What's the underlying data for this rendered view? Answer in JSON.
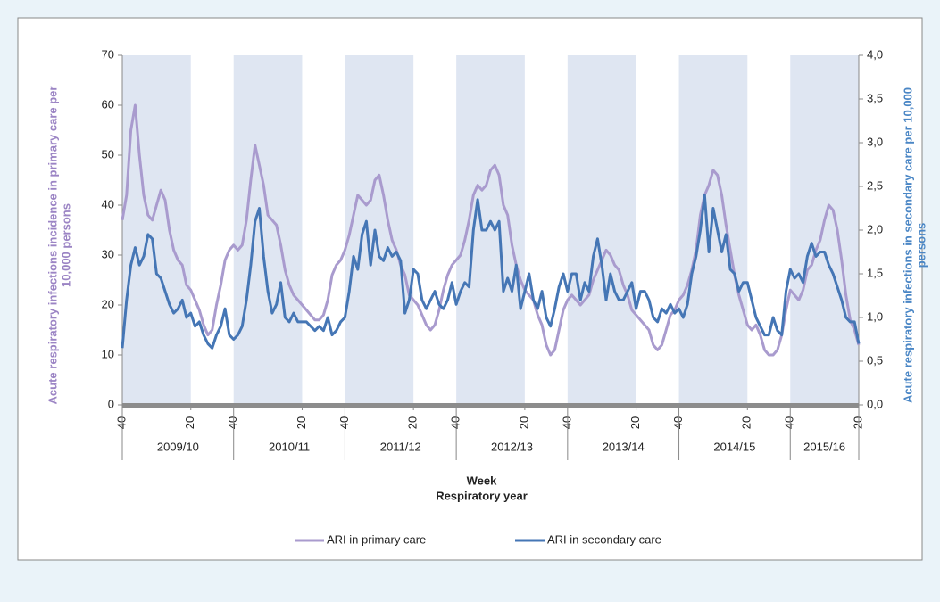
{
  "chart_data": {
    "type": "line",
    "xlabel": [
      "Week",
      "Respiratory year"
    ],
    "ylabel": [
      "Acute respiratory infections incidence in primary care per",
      "10,000 persons"
    ],
    "y2label": [
      "Acute respiratory infections in secondary care per 10,000",
      "persons"
    ],
    "seasons": [
      "2009/10",
      "2010/11",
      "2011/12",
      "2012/13",
      "2013/14",
      "2014/15",
      "2015/16"
    ],
    "x": [
      0,
      2,
      4,
      6,
      8,
      10,
      12,
      14,
      16,
      18,
      20,
      22,
      24,
      26,
      28,
      30,
      32,
      34,
      36,
      38,
      40,
      42,
      44,
      46,
      48,
      50,
      52,
      54,
      56,
      58,
      60,
      62,
      64,
      66,
      68,
      70,
      72,
      74,
      76,
      78,
      80,
      82,
      84,
      86,
      88,
      90,
      92,
      94,
      96,
      98,
      100,
      102,
      104,
      106,
      108,
      110,
      112,
      114,
      116,
      118,
      120,
      122,
      124,
      126,
      128,
      130,
      132,
      134,
      136,
      138,
      140,
      142,
      144,
      146,
      148,
      150,
      152,
      154,
      156,
      158,
      160,
      162,
      164,
      166,
      168,
      170,
      172,
      174,
      176,
      178,
      180,
      182,
      184,
      186,
      188,
      190,
      192,
      194,
      196,
      198,
      200,
      202,
      204,
      206,
      208,
      210,
      212,
      214,
      216,
      218,
      220,
      222,
      224,
      226,
      228,
      230,
      232,
      234,
      236,
      238,
      240,
      242,
      244,
      246,
      248,
      250,
      252,
      254,
      256,
      258,
      260,
      262,
      264,
      266,
      268,
      270,
      272,
      274,
      276,
      278,
      280,
      282,
      284,
      286,
      288,
      290,
      292,
      294,
      296,
      298,
      300,
      302,
      304,
      306,
      308,
      310,
      312,
      314,
      316,
      318,
      320,
      322,
      324,
      326,
      328,
      330,
      332,
      334,
      336,
      338,
      340,
      342,
      344
    ],
    "xlim": [
      0,
      344
    ],
    "xticks": [
      {
        "value": 0,
        "label": "40"
      },
      {
        "value": 32,
        "label": "20"
      },
      {
        "value": 52,
        "label": "40"
      },
      {
        "value": 84,
        "label": "20"
      },
      {
        "value": 104,
        "label": "40"
      },
      {
        "value": 136,
        "label": "20"
      },
      {
        "value": 156,
        "label": "40"
      },
      {
        "value": 188,
        "label": "20"
      },
      {
        "value": 208,
        "label": "40"
      },
      {
        "value": 240,
        "label": "20"
      },
      {
        "value": 260,
        "label": "40"
      },
      {
        "value": 292,
        "label": "20"
      },
      {
        "value": 312,
        "label": "40"
      },
      {
        "value": 344,
        "label": "20"
      }
    ],
    "ylim": [
      0,
      70
    ],
    "yticks": [
      0,
      10,
      20,
      30,
      40,
      50,
      60,
      70
    ],
    "y2lim": [
      0,
      4
    ],
    "y2ticks": [
      {
        "value": 0,
        "label": "0,0"
      },
      {
        "value": 0.5,
        "label": "0,5"
      },
      {
        "value": 1,
        "label": "1,0"
      },
      {
        "value": 1.5,
        "label": "1,5"
      },
      {
        "value": 2,
        "label": "2,0"
      },
      {
        "value": 2.5,
        "label": "2,5"
      },
      {
        "value": 3,
        "label": "3,0"
      },
      {
        "value": 3.5,
        "label": "3,5"
      },
      {
        "value": 4,
        "label": "4,0"
      }
    ],
    "series": [
      {
        "name": "ARI in primary care",
        "color": "#a99bce",
        "values": [
          37,
          42,
          55,
          60,
          50,
          42,
          38,
          37,
          40,
          43,
          41,
          35,
          31,
          29,
          28,
          24,
          23,
          21,
          19,
          16,
          14,
          15,
          20,
          24,
          29,
          31,
          32,
          31,
          32,
          37,
          45,
          52,
          48,
          44,
          38,
          37,
          36,
          32,
          27,
          24,
          22,
          21,
          20,
          19,
          18,
          17,
          17,
          18,
          21,
          26,
          28,
          29,
          31,
          34,
          38,
          42,
          41,
          40,
          41,
          45,
          46,
          42,
          37,
          33,
          31,
          28,
          26,
          22,
          21,
          20,
          18,
          16,
          15,
          16,
          19,
          23,
          26,
          28,
          29,
          30,
          33,
          37,
          42,
          44,
          43,
          44,
          47,
          48,
          46,
          40,
          38,
          32,
          28,
          25,
          23,
          22,
          21,
          18,
          16,
          12,
          10,
          11,
          15,
          19,
          21,
          22,
          21,
          20,
          21,
          22,
          25,
          27,
          29,
          31,
          30,
          28,
          27,
          24,
          22,
          19,
          18,
          17,
          16,
          15,
          12,
          11,
          12,
          15,
          18,
          19,
          21,
          22,
          24,
          27,
          31,
          38,
          42,
          44,
          47,
          46,
          42,
          36,
          31,
          26,
          22,
          19,
          16,
          15,
          16,
          14,
          11,
          10,
          10,
          11,
          14,
          19,
          23,
          22,
          21,
          23,
          27,
          28,
          31,
          33,
          37,
          40,
          39,
          35,
          29,
          22,
          17,
          15,
          12
        ]
      },
      {
        "name": "ARI in secondary care",
        "color": "#4576b5",
        "axis": "y2",
        "values": [
          0.65,
          1.2,
          1.6,
          1.8,
          1.6,
          1.7,
          1.95,
          1.9,
          1.5,
          1.45,
          1.3,
          1.15,
          1.05,
          1.1,
          1.2,
          1.0,
          1.05,
          0.9,
          0.95,
          0.8,
          0.7,
          0.65,
          0.8,
          0.9,
          1.1,
          0.8,
          0.75,
          0.8,
          0.9,
          1.2,
          1.6,
          2.1,
          2.25,
          1.7,
          1.3,
          1.05,
          1.15,
          1.4,
          1.0,
          0.95,
          1.05,
          0.95,
          0.95,
          0.95,
          0.9,
          0.85,
          0.9,
          0.85,
          1.0,
          0.8,
          0.85,
          0.95,
          1.0,
          1.3,
          1.7,
          1.55,
          1.95,
          2.1,
          1.6,
          2.0,
          1.7,
          1.65,
          1.8,
          1.7,
          1.75,
          1.65,
          1.05,
          1.2,
          1.55,
          1.5,
          1.2,
          1.1,
          1.2,
          1.3,
          1.15,
          1.1,
          1.2,
          1.4,
          1.15,
          1.3,
          1.4,
          1.35,
          2.0,
          2.35,
          2.0,
          2.0,
          2.1,
          2.0,
          2.1,
          1.3,
          1.45,
          1.3,
          1.6,
          1.1,
          1.3,
          1.5,
          1.2,
          1.1,
          1.3,
          1.0,
          0.9,
          1.1,
          1.35,
          1.5,
          1.3,
          1.5,
          1.5,
          1.2,
          1.4,
          1.3,
          1.7,
          1.9,
          1.6,
          1.2,
          1.5,
          1.3,
          1.2,
          1.2,
          1.3,
          1.4,
          1.1,
          1.3,
          1.3,
          1.2,
          1.0,
          0.95,
          1.1,
          1.05,
          1.15,
          1.05,
          1.1,
          1.0,
          1.15,
          1.5,
          1.7,
          2.0,
          2.4,
          1.75,
          2.25,
          2.0,
          1.75,
          1.95,
          1.55,
          1.5,
          1.3,
          1.4,
          1.4,
          1.2,
          1.0,
          0.9,
          0.8,
          0.8,
          1.0,
          0.85,
          0.8,
          1.3,
          1.55,
          1.45,
          1.5,
          1.4,
          1.7,
          1.85,
          1.7,
          1.75,
          1.75,
          1.6,
          1.5,
          1.35,
          1.2,
          1.0,
          0.95,
          0.95,
          0.7
        ]
      }
    ],
    "legend": "bottom"
  }
}
